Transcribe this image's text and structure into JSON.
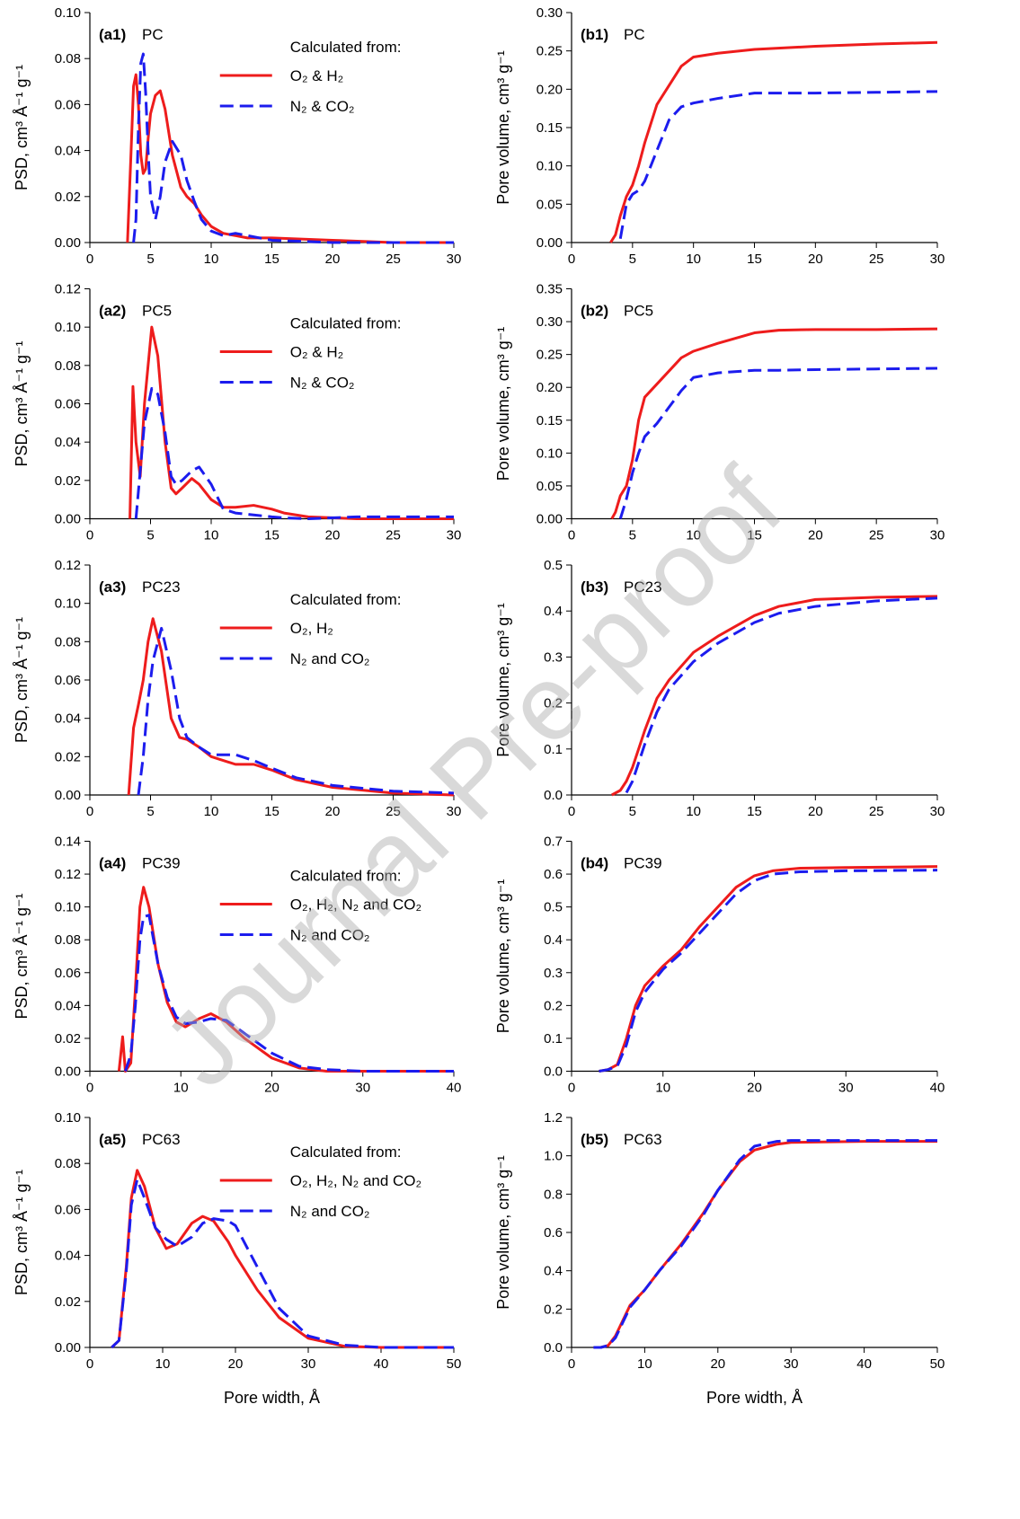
{
  "chart_data": [
    {
      "type": "line",
      "panel_label": "(a1)",
      "title": "PC",
      "ylabel": "PSD, cm³ Å⁻¹ g⁻¹",
      "legend_title": "Calculated from:",
      "xlim": [
        0,
        30
      ],
      "xticks": [
        0,
        5,
        10,
        15,
        20,
        25,
        30
      ],
      "ylim": [
        0,
        0.1
      ],
      "yticks": [
        {
          "value": 0,
          "label": "0.00"
        },
        0.02,
        0.04,
        0.06,
        0.08,
        {
          "value": 0.1,
          "label": "0.10"
        }
      ],
      "x": [
        3.1,
        3.4,
        3.6,
        3.8,
        4.0,
        4.2,
        4.4,
        4.6,
        4.8,
        5.0,
        5.4,
        5.8,
        6.2,
        6.8,
        7.5,
        8.0,
        8.6,
        9.2,
        10,
        11,
        12,
        13,
        15,
        20,
        25,
        30
      ],
      "series": [
        {
          "name": "O₂ & H₂",
          "color": "#ee1c1c",
          "style": "solid",
          "values": [
            0,
            0.04,
            0.068,
            0.073,
            0.06,
            0.038,
            0.03,
            0.032,
            0.045,
            0.056,
            0.064,
            0.066,
            0.058,
            0.038,
            0.024,
            0.02,
            0.017,
            0.012,
            0.007,
            0.004,
            0.003,
            0.002,
            0.002,
            0.001,
            0,
            0
          ]
        },
        {
          "name": "N₂ & CO₂",
          "color": "#1c1cee",
          "style": "dashed",
          "values": [
            null,
            null,
            0,
            0.01,
            0.05,
            0.078,
            0.082,
            0.065,
            0.04,
            0.02,
            0.01,
            0.02,
            0.035,
            0.044,
            0.038,
            0.027,
            0.018,
            0.01,
            0.005,
            0.003,
            0.004,
            0.003,
            0.001,
            0,
            0,
            0
          ]
        }
      ]
    },
    {
      "type": "line",
      "panel_label": "(b1)",
      "title": "PC",
      "ylabel": "Pore volume, cm³ g⁻¹",
      "xlim": [
        0,
        30
      ],
      "xticks": [
        0,
        5,
        10,
        15,
        20,
        25,
        30
      ],
      "ylim": [
        0,
        0.3
      ],
      "yticks": [
        {
          "value": 0,
          "label": "0.00"
        },
        0.05,
        {
          "value": 0.1,
          "label": "0.10"
        },
        0.15,
        {
          "value": 0.2,
          "label": "0.20"
        },
        0.25,
        {
          "value": 0.3,
          "label": "0.30"
        }
      ],
      "x": [
        3.2,
        3.6,
        4,
        4.5,
        5,
        5.5,
        6,
        7,
        8,
        9,
        10,
        12,
        15,
        20,
        25,
        30
      ],
      "series": [
        {
          "color": "#ee1c1c",
          "style": "solid",
          "values": [
            0,
            0.01,
            0.035,
            0.06,
            0.075,
            0.1,
            0.13,
            0.18,
            0.205,
            0.23,
            0.242,
            0.247,
            0.252,
            0.256,
            0.259,
            0.261
          ]
        },
        {
          "color": "#1c1cee",
          "style": "dashed",
          "values": [
            null,
            null,
            0.005,
            0.05,
            0.063,
            0.068,
            0.08,
            0.12,
            0.16,
            0.177,
            0.182,
            0.188,
            0.195,
            0.195,
            0.196,
            0.197
          ]
        }
      ]
    },
    {
      "type": "line",
      "panel_label": "(a2)",
      "title": "PC5",
      "ylabel": "PSD, cm³ Å⁻¹ g⁻¹",
      "legend_title": "Calculated from:",
      "xlim": [
        0,
        30
      ],
      "xticks": [
        0,
        5,
        10,
        15,
        20,
        25,
        30
      ],
      "ylim": [
        0,
        0.12
      ],
      "yticks": [
        {
          "value": 0,
          "label": "0.00"
        },
        0.02,
        0.04,
        0.06,
        0.08,
        {
          "value": 0.1,
          "label": "0.10"
        },
        0.12
      ],
      "x": [
        3.3,
        3.55,
        3.8,
        4.15,
        4.5,
        5.1,
        5.6,
        6.2,
        6.7,
        7.1,
        7.6,
        8.4,
        9,
        10,
        11,
        12,
        13.5,
        15,
        16,
        18,
        22,
        30
      ],
      "series": [
        {
          "name": "O₂ & H₂",
          "color": "#ee1c1c",
          "style": "solid",
          "values": [
            0,
            0.069,
            0.04,
            0.022,
            0.06,
            0.1,
            0.085,
            0.04,
            0.016,
            0.013,
            0.016,
            0.021,
            0.018,
            0.01,
            0.006,
            0.006,
            0.007,
            0.005,
            0.003,
            0.001,
            0,
            0
          ]
        },
        {
          "name": "N₂ & CO₂",
          "color": "#1c1cee",
          "style": "dashed",
          "values": [
            null,
            null,
            0,
            0.025,
            0.05,
            0.068,
            0.065,
            0.045,
            0.022,
            0.018,
            0.02,
            0.025,
            0.027,
            0.018,
            0.005,
            0.003,
            0.002,
            0.001,
            0.0005,
            0,
            0.001,
            0.001
          ]
        }
      ]
    },
    {
      "type": "line",
      "panel_label": "(b2)",
      "title": "PC5",
      "ylabel": "Pore volume, cm³ g⁻¹",
      "xlim": [
        0,
        30
      ],
      "xticks": [
        0,
        5,
        10,
        15,
        20,
        25,
        30
      ],
      "ylim": [
        0,
        0.35
      ],
      "yticks": [
        {
          "value": 0,
          "label": "0.00"
        },
        0.05,
        {
          "value": 0.1,
          "label": "0.10"
        },
        0.15,
        {
          "value": 0.2,
          "label": "0.20"
        },
        0.25,
        {
          "value": 0.3,
          "label": "0.30"
        },
        0.35
      ],
      "x": [
        3.3,
        3.6,
        4,
        4.5,
        5,
        5.5,
        6,
        7,
        8,
        9,
        10,
        12,
        15,
        17,
        20,
        25,
        30
      ],
      "series": [
        {
          "color": "#ee1c1c",
          "style": "solid",
          "values": [
            0,
            0.01,
            0.035,
            0.05,
            0.09,
            0.15,
            0.185,
            0.205,
            0.225,
            0.245,
            0.255,
            0.267,
            0.283,
            0.287,
            0.288,
            0.288,
            0.289
          ]
        },
        {
          "color": "#1c1cee",
          "style": "dashed",
          "values": [
            null,
            null,
            0,
            0.03,
            0.07,
            0.1,
            0.125,
            0.145,
            0.17,
            0.195,
            0.215,
            0.222,
            0.226,
            0.226,
            0.227,
            0.228,
            0.229
          ]
        }
      ]
    },
    {
      "type": "line",
      "panel_label": "(a3)",
      "title": "PC23",
      "ylabel": "PSD, cm³ Å⁻¹ g⁻¹",
      "legend_title": "Calculated from:",
      "xlim": [
        0,
        30
      ],
      "xticks": [
        0,
        5,
        10,
        15,
        20,
        25,
        30
      ],
      "ylim": [
        0,
        0.12
      ],
      "yticks": [
        {
          "value": 0,
          "label": "0.00"
        },
        0.02,
        0.04,
        0.06,
        0.08,
        {
          "value": 0.1,
          "label": "0.10"
        },
        0.12
      ],
      "x": [
        3.2,
        3.6,
        4,
        4.4,
        4.8,
        5.2,
        5.9,
        6.7,
        7.4,
        8,
        9,
        10,
        12,
        13.5,
        15,
        17,
        20,
        25,
        30
      ],
      "series": [
        {
          "name": "O₂, H₂",
          "color": "#ee1c1c",
          "style": "solid",
          "values": [
            0,
            0.035,
            0.047,
            0.06,
            0.08,
            0.092,
            0.075,
            0.04,
            0.03,
            0.029,
            0.025,
            0.02,
            0.016,
            0.016,
            0.013,
            0.008,
            0.004,
            0.001,
            0
          ]
        },
        {
          "name": "N₂ and CO₂",
          "color": "#1c1cee",
          "style": "dashed",
          "values": [
            null,
            null,
            0,
            0.02,
            0.05,
            0.07,
            0.087,
            0.065,
            0.04,
            0.03,
            0.025,
            0.021,
            0.021,
            0.018,
            0.014,
            0.009,
            0.005,
            0.002,
            0.001
          ]
        }
      ]
    },
    {
      "type": "line",
      "panel_label": "(b3)",
      "title": "PC23",
      "ylabel": "Pore volume, cm³ g⁻¹",
      "xlim": [
        0,
        30
      ],
      "xticks": [
        0,
        5,
        10,
        15,
        20,
        25,
        30
      ],
      "ylim": [
        0,
        0.5
      ],
      "yticks": [
        {
          "value": 0,
          "label": "0.0"
        },
        0.1,
        0.2,
        0.3,
        0.4,
        0.5
      ],
      "x": [
        3.3,
        4,
        4.5,
        5,
        5.5,
        6,
        7,
        8,
        10,
        12,
        15,
        17,
        20,
        25,
        30
      ],
      "series": [
        {
          "color": "#ee1c1c",
          "style": "solid",
          "values": [
            0,
            0.01,
            0.03,
            0.06,
            0.1,
            0.14,
            0.21,
            0.25,
            0.31,
            0.345,
            0.39,
            0.41,
            0.425,
            0.43,
            0.432
          ]
        },
        {
          "color": "#1c1cee",
          "style": "dashed",
          "values": [
            null,
            null,
            0.005,
            0.03,
            0.07,
            0.11,
            0.18,
            0.23,
            0.29,
            0.33,
            0.375,
            0.395,
            0.41,
            0.422,
            0.428
          ]
        }
      ]
    },
    {
      "type": "line",
      "panel_label": "(a4)",
      "title": "PC39",
      "ylabel": "PSD, cm³ Å⁻¹ g⁻¹",
      "legend_title": "Calculated from:",
      "xlim": [
        0,
        40
      ],
      "xticks": [
        0,
        10,
        20,
        30,
        40
      ],
      "ylim": [
        0,
        0.14
      ],
      "yticks": [
        {
          "value": 0,
          "label": "0.00"
        },
        0.02,
        0.04,
        0.06,
        0.08,
        {
          "value": 0.1,
          "label": "0.10"
        },
        0.12,
        0.14
      ],
      "x": [
        3.2,
        3.6,
        3.9,
        4.5,
        5,
        5.5,
        5.9,
        6.5,
        7.5,
        8.5,
        9.5,
        10.5,
        12,
        13.3,
        15,
        17,
        20,
        23,
        26,
        30,
        40
      ],
      "series": [
        {
          "name": "O₂, H₂, N₂ and CO₂",
          "color": "#ee1c1c",
          "style": "solid",
          "values": [
            0,
            0.021,
            0,
            0.005,
            0.05,
            0.1,
            0.112,
            0.1,
            0.065,
            0.042,
            0.03,
            0.027,
            0.032,
            0.035,
            0.03,
            0.02,
            0.008,
            0.002,
            0,
            0,
            0
          ]
        },
        {
          "name": "N₂ and CO₂",
          "color": "#1c1cee",
          "style": "dashed",
          "values": [
            null,
            null,
            0,
            0.01,
            0.04,
            0.08,
            0.094,
            0.095,
            0.065,
            0.045,
            0.033,
            0.029,
            0.03,
            0.032,
            0.031,
            0.023,
            0.011,
            0.003,
            0.001,
            0,
            0
          ]
        }
      ]
    },
    {
      "type": "line",
      "panel_label": "(b4)",
      "title": "PC39",
      "ylabel": "Pore volume, cm³ g⁻¹",
      "xlim": [
        0,
        40
      ],
      "xticks": [
        0,
        10,
        20,
        30,
        40
      ],
      "ylim": [
        0,
        0.7
      ],
      "yticks": [
        {
          "value": 0,
          "label": "0.0"
        },
        0.1,
        0.2,
        0.3,
        0.4,
        0.5,
        0.6,
        0.7
      ],
      "x": [
        3,
        4,
        5,
        6,
        7,
        8,
        10,
        12,
        14,
        16,
        18,
        20,
        22,
        25,
        30,
        40
      ],
      "series": [
        {
          "color": "#ee1c1c",
          "style": "solid",
          "values": [
            0,
            0.005,
            0.02,
            0.1,
            0.2,
            0.26,
            0.32,
            0.37,
            0.44,
            0.5,
            0.56,
            0.595,
            0.61,
            0.618,
            0.62,
            0.623
          ]
        },
        {
          "color": "#1c1cee",
          "style": "dashed",
          "values": [
            0,
            0.005,
            0.015,
            0.08,
            0.18,
            0.24,
            0.31,
            0.36,
            0.42,
            0.48,
            0.54,
            0.58,
            0.6,
            0.607,
            0.61,
            0.612
          ]
        }
      ]
    },
    {
      "type": "line",
      "panel_label": "(a5)",
      "title": "PC63",
      "ylabel": "PSD, cm³ Å⁻¹ g⁻¹",
      "xlabel": "Pore width, Å",
      "legend_title": "Calculated from:",
      "xlim": [
        0,
        50
      ],
      "xticks": [
        0,
        10,
        20,
        30,
        40,
        50
      ],
      "ylim": [
        0,
        0.1
      ],
      "yticks": [
        {
          "value": 0,
          "label": "0.00"
        },
        0.02,
        0.04,
        0.06,
        0.08,
        {
          "value": 0.1,
          "label": "0.10"
        }
      ],
      "x": [
        3,
        4,
        5,
        5.7,
        6.5,
        7.5,
        9,
        10.5,
        12,
        14,
        15.5,
        17,
        19,
        20,
        23,
        26,
        30,
        35,
        40,
        50
      ],
      "series": [
        {
          "name": "O₂, H₂, N₂ and CO₂",
          "color": "#ee1c1c",
          "style": "solid",
          "values": [
            0,
            0.003,
            0.035,
            0.065,
            0.077,
            0.07,
            0.052,
            0.043,
            0.045,
            0.054,
            0.057,
            0.055,
            0.046,
            0.04,
            0.025,
            0.013,
            0.004,
            0.0005,
            0,
            0
          ]
        },
        {
          "name": "N₂ and CO₂",
          "color": "#1c1cee",
          "style": "dashed",
          "values": [
            0,
            0.003,
            0.033,
            0.062,
            0.073,
            0.065,
            0.052,
            0.047,
            0.044,
            0.048,
            0.054,
            0.056,
            0.055,
            0.053,
            0.035,
            0.017,
            0.005,
            0.001,
            0,
            0
          ]
        }
      ]
    },
    {
      "type": "line",
      "panel_label": "(b5)",
      "title": "PC63",
      "ylabel": "Pore volume, cm³ g⁻¹",
      "xlabel": "Pore width, Å",
      "xlim": [
        0,
        50
      ],
      "xticks": [
        0,
        10,
        20,
        30,
        40,
        50
      ],
      "ylim": [
        0,
        1.2
      ],
      "yticks": [
        {
          "value": 0,
          "label": "0.0"
        },
        0.2,
        0.4,
        0.6,
        0.8,
        {
          "value": 1,
          "label": "1.0"
        },
        1.2
      ],
      "x": [
        3,
        4,
        5,
        6,
        7,
        8,
        10,
        12,
        15,
        18,
        20,
        23,
        25,
        28,
        30,
        40,
        50
      ],
      "series": [
        {
          "color": "#ee1c1c",
          "style": "solid",
          "values": [
            0,
            0,
            0.01,
            0.06,
            0.14,
            0.22,
            0.3,
            0.4,
            0.54,
            0.7,
            0.82,
            0.97,
            1.03,
            1.06,
            1.07,
            1.075,
            1.075
          ]
        },
        {
          "color": "#1c1cee",
          "style": "dashed",
          "values": [
            0,
            0,
            0.01,
            0.05,
            0.13,
            0.21,
            0.3,
            0.4,
            0.53,
            0.69,
            0.82,
            0.98,
            1.05,
            1.075,
            1.08,
            1.08,
            1.08
          ]
        }
      ]
    }
  ],
  "watermark": "Journal Pre-proof"
}
